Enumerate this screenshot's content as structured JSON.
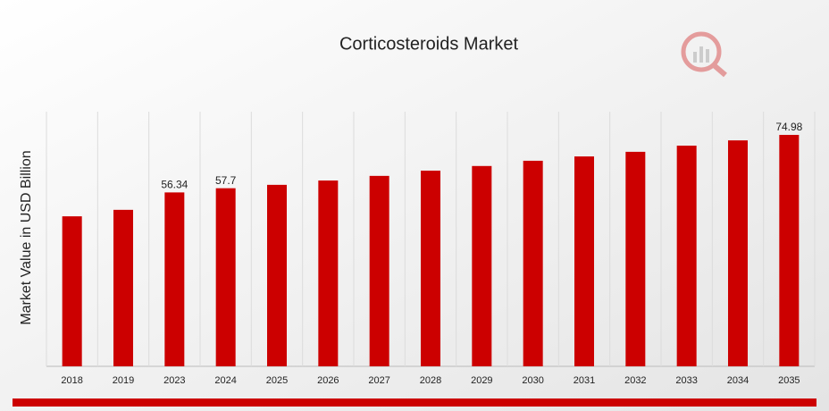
{
  "chart_data": {
    "type": "bar",
    "title": "Corticosteroids Market",
    "y_label": "Market Value in USD Billion",
    "categories": [
      "2018",
      "2019",
      "2023",
      "2024",
      "2025",
      "2026",
      "2027",
      "2028",
      "2029",
      "2030",
      "2031",
      "2032",
      "2033",
      "2034",
      "2035"
    ],
    "values": [
      48.6,
      50.7,
      56.34,
      57.7,
      58.8,
      60.2,
      61.7,
      63.4,
      64.9,
      66.6,
      68.0,
      69.5,
      71.5,
      73.2,
      74.98
    ],
    "value_labels": [
      null,
      null,
      "56.34",
      "57.7",
      null,
      null,
      null,
      null,
      null,
      null,
      null,
      null,
      null,
      null,
      "74.98"
    ],
    "color": "#cc0000",
    "ylim": [
      0,
      82.5
    ],
    "grid": true
  }
}
